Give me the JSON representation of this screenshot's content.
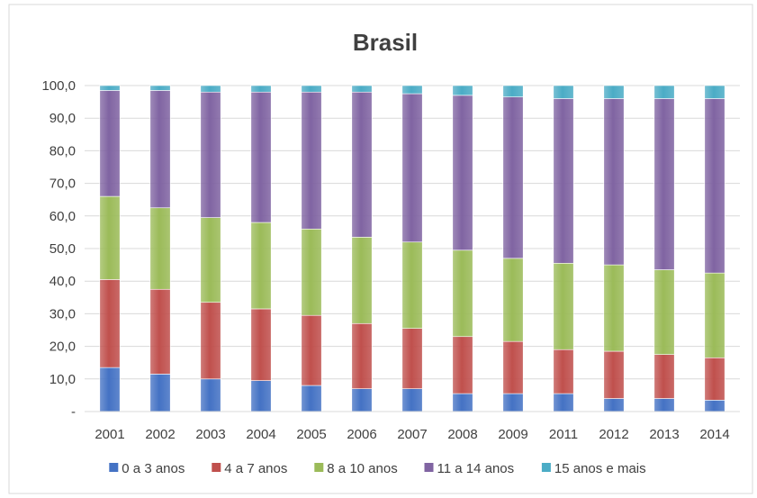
{
  "chart_data": {
    "type": "bar",
    "stacked": true,
    "title": "Brasil",
    "categories": [
      "2001",
      "2002",
      "2003",
      "2004",
      "2005",
      "2006",
      "2007",
      "2008",
      "2009",
      "2011",
      "2012",
      "2013",
      "2014"
    ],
    "y_ticks": [
      "-",
      "10,0",
      "20,0",
      "30,0",
      "40,0",
      "50,0",
      "60,0",
      "70,0",
      "80,0",
      "90,0",
      "100,0"
    ],
    "ylim": [
      0,
      100
    ],
    "grid": true,
    "legend_position": "bottom",
    "series": [
      {
        "name": "0 a 3 anos",
        "color": "#4472c4",
        "values": [
          13.5,
          11.5,
          10.0,
          9.5,
          8.0,
          7.0,
          7.0,
          5.5,
          5.5,
          5.5,
          4.0,
          4.0,
          3.5
        ]
      },
      {
        "name": "4 a 7 anos",
        "color": "#c0504d",
        "values": [
          27.0,
          26.0,
          23.5,
          22.0,
          21.5,
          20.0,
          18.5,
          17.5,
          16.0,
          13.5,
          14.5,
          13.5,
          13.0
        ]
      },
      {
        "name": "8 a 10 anos",
        "color": "#9bbb59",
        "values": [
          25.5,
          25.0,
          26.0,
          26.5,
          26.5,
          26.5,
          26.5,
          26.5,
          25.5,
          26.5,
          26.5,
          26.0,
          26.0
        ]
      },
      {
        "name": "11 a 14 anos",
        "color": "#8064a2",
        "values": [
          32.5,
          36.0,
          38.5,
          40.0,
          42.0,
          44.5,
          45.5,
          47.5,
          49.5,
          50.5,
          51.0,
          52.5,
          53.5
        ]
      },
      {
        "name": "15 anos e mais",
        "color": "#4bacc6",
        "values": [
          1.5,
          1.5,
          2.0,
          2.0,
          2.0,
          2.0,
          2.5,
          3.0,
          3.5,
          4.0,
          4.0,
          4.0,
          4.0
        ]
      }
    ]
  }
}
